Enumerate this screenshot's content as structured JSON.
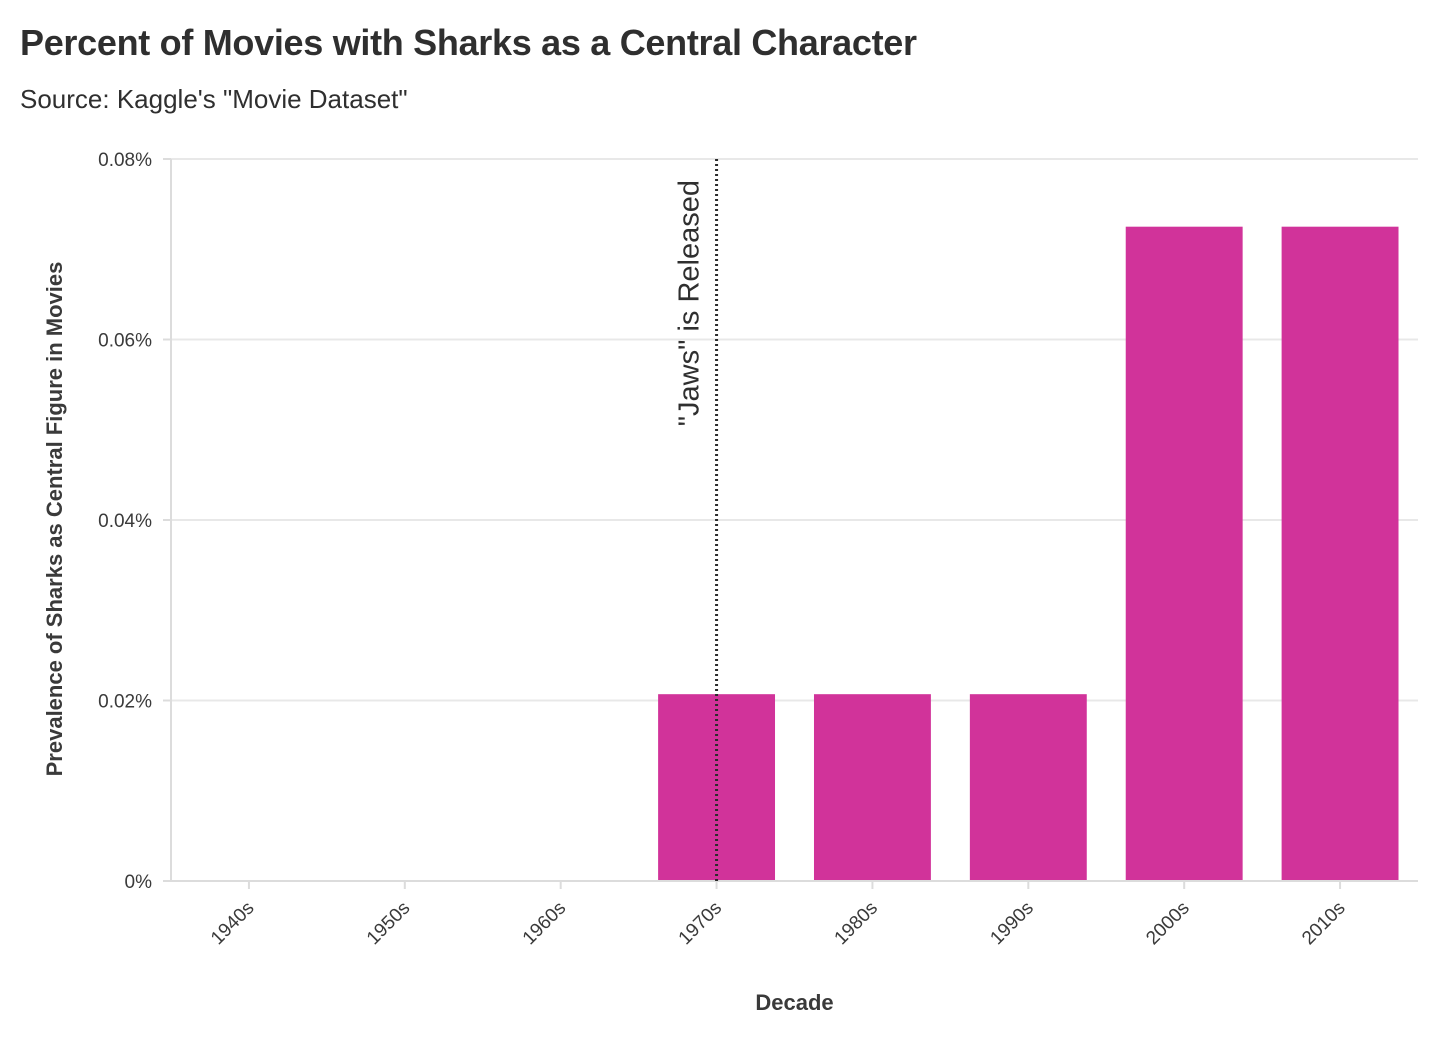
{
  "title": "Percent of Movies with Sharks as a Central Character",
  "subtitle": "Source: Kaggle's \"Movie Dataset\"",
  "colors": {
    "bar": "#d1339a",
    "grid": "#e8e8e8",
    "axis": "#dcdcdc",
    "annotation_line": "#2a2a2a"
  },
  "chart_data": {
    "type": "bar",
    "categories": [
      "1940s",
      "1950s",
      "1960s",
      "1970s",
      "1980s",
      "1990s",
      "2000s",
      "2010s"
    ],
    "values": [
      0,
      0,
      0,
      0.0207,
      0.0207,
      0.0207,
      0.0725,
      0.0725
    ],
    "value_unit": "%",
    "xlabel": "Decade",
    "ylabel": "Prevalence of Sharks as Central Figure in Movies",
    "ylim": [
      0,
      0.08
    ],
    "yticks": [
      0,
      0.02,
      0.04,
      0.06,
      0.08
    ],
    "ytick_labels": [
      "0%",
      "0.02%",
      "0.04%",
      "0.06%",
      "0.08%"
    ],
    "grid": "horizontal",
    "annotation": {
      "text": "\"Jaws\" is Released",
      "category": "1970s",
      "line_style": "dotted"
    }
  }
}
